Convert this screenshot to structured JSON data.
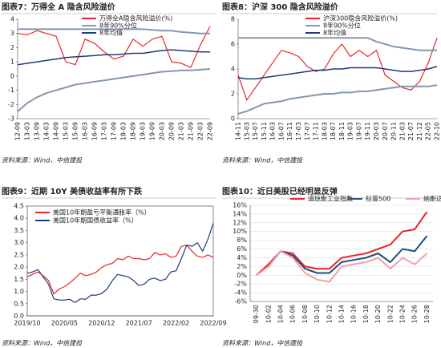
{
  "chart_data": [
    {
      "type": "line",
      "title": "图表7：万得全 A 隐含风险溢价",
      "source": "资料来源：Wind，中信建投",
      "legend": "upper center",
      "grid": false,
      "frame": false,
      "xtick_rotation": 90,
      "category_padding": false,
      "categories": [
        "12-09",
        "13-03",
        "13-09",
        "14-03",
        "14-09",
        "15-03",
        "15-09",
        "16-03",
        "16-09",
        "17-03",
        "17-09",
        "18-03",
        "18-09",
        "19-03",
        "19-09",
        "20-03",
        "20-09",
        "21-03",
        "21-09",
        "22-03",
        "22-09"
      ],
      "ylim": [
        -3,
        4
      ],
      "yticks": [
        -3,
        -2,
        -1,
        0,
        1,
        2,
        3,
        4
      ],
      "series": [
        {
          "name": "万得全A隐含风险溢价(%)",
          "color": "#e8262a",
          "width": 1.2,
          "values": [
            3.0,
            2.9,
            3.2,
            3.0,
            2.8,
            1.0,
            0.8,
            2.6,
            2.3,
            1.7,
            1.2,
            1.4,
            2.6,
            2.1,
            2.6,
            2.8,
            1.0,
            0.9,
            0.6,
            2.2,
            3.5
          ]
        },
        {
          "name": "8年90%分位",
          "color": "#8497b0",
          "width": 2,
          "values": [
            3.3,
            3.3,
            3.3,
            3.3,
            3.3,
            3.3,
            3.3,
            3.3,
            3.3,
            3.3,
            3.3,
            3.3,
            3.3,
            3.3,
            3.25,
            3.2,
            3.2,
            3.1,
            3.05,
            3.0,
            3.0
          ]
        },
        {
          "color": "#8497b0",
          "width": 2,
          "values": [
            -2.5,
            -1.9,
            -1.5,
            -1.2,
            -1.0,
            -0.8,
            -0.6,
            -0.5,
            -0.4,
            -0.3,
            -0.2,
            -0.1,
            0,
            0.1,
            0.2,
            0.3,
            0.35,
            0.4,
            0.4,
            0.45,
            0.5
          ]
        },
        {
          "name": "8年均值",
          "color": "#1f3a7a",
          "width": 1.5,
          "values": [
            0.8,
            0.9,
            1.0,
            1.1,
            1.2,
            1.3,
            1.35,
            1.4,
            1.45,
            1.5,
            1.5,
            1.55,
            1.6,
            1.6,
            1.7,
            1.8,
            1.85,
            1.8,
            1.75,
            1.7,
            1.7
          ]
        }
      ]
    },
    {
      "type": "line",
      "title": "图表8：沪深 300 隐含风险溢价",
      "source": "资料来源：Wind，中信建投",
      "legend": "upper center",
      "grid": false,
      "frame": false,
      "xtick_rotation": 90,
      "category_padding": false,
      "categories": [
        "14-11",
        "15-03",
        "15-07",
        "15-11",
        "16-03",
        "16-07",
        "16-11",
        "17-03",
        "17-07",
        "17-11",
        "18-03",
        "18-07",
        "18-11",
        "19-03",
        "19-07",
        "19-11",
        "20-03",
        "20-07",
        "20-11",
        "21-03",
        "21-07",
        "21-12",
        "22-05",
        "22-10"
      ],
      "ylim": [
        0,
        8
      ],
      "yticks": [
        0,
        2,
        4,
        6,
        8
      ],
      "series": [
        {
          "name": "沪深300隐含风险溢价(%)",
          "color": "#e8262a",
          "width": 1.2,
          "values": [
            3.5,
            1.5,
            2.5,
            3.5,
            4.5,
            5.5,
            5.3,
            5.0,
            4.2,
            3.8,
            4.0,
            5.2,
            6.0,
            5.0,
            5.5,
            5.0,
            5.5,
            3.5,
            3.0,
            2.5,
            2.3,
            3.0,
            4.5,
            6.5
          ]
        },
        {
          "name": "8年90%分位",
          "color": "#8497b0",
          "width": 2,
          "values": [
            6.5,
            6.5,
            6.5,
            6.5,
            6.5,
            6.5,
            6.5,
            6.5,
            6.5,
            6.5,
            6.5,
            6.5,
            6.5,
            6.5,
            6.5,
            6.5,
            6.2,
            6.0,
            5.8,
            5.7,
            5.6,
            5.5,
            5.5,
            5.5
          ]
        },
        {
          "color": "#8497b0",
          "width": 2,
          "values": [
            0.4,
            0.6,
            0.9,
            1.2,
            1.3,
            1.4,
            1.6,
            1.7,
            1.8,
            1.9,
            2.0,
            2.0,
            2.1,
            2.1,
            2.2,
            2.2,
            2.3,
            2.4,
            2.5,
            2.6,
            2.6,
            2.6,
            2.6,
            2.7
          ]
        },
        {
          "name": "8年均值",
          "color": "#1f3a7a",
          "width": 1.5,
          "values": [
            3.3,
            3.2,
            3.2,
            3.3,
            3.4,
            3.5,
            3.6,
            3.7,
            3.8,
            3.9,
            3.9,
            4.0,
            4.0,
            4.1,
            4.1,
            4.1,
            4.1,
            4.0,
            3.9,
            3.8,
            3.8,
            3.9,
            4.0,
            4.2
          ]
        }
      ]
    },
    {
      "type": "line",
      "title": "图表9：近期 10Y 美债收益率有所下跌",
      "source": "资料来源：Wind，中信建投",
      "legend": "upper left",
      "grid": false,
      "frame": true,
      "xtick_rotation": 0,
      "category_padding": false,
      "categories": [
        "2019/10",
        null,
        null,
        null,
        null,
        null,
        null,
        "2020/05",
        null,
        null,
        null,
        null,
        null,
        null,
        "2020/12",
        null,
        null,
        null,
        null,
        null,
        null,
        "2021/07",
        null,
        null,
        null,
        null,
        null,
        null,
        "2022/02",
        null,
        null,
        null,
        null,
        null,
        null,
        "2022/09"
      ],
      "ylim": [
        0,
        4.5
      ],
      "yticks": [
        {
          "value": 0,
          "label": "0.0"
        },
        {
          "value": 0.5,
          "label": "0.5"
        },
        {
          "value": 1,
          "label": "1.0"
        },
        {
          "value": 1.5,
          "label": "1.5"
        },
        {
          "value": 2,
          "label": "2.0"
        },
        {
          "value": 2.5,
          "label": "2.5"
        },
        {
          "value": 3,
          "label": "3.0"
        },
        {
          "value": 3.5,
          "label": "3.5"
        },
        {
          "value": 4,
          "label": "4.0"
        },
        {
          "value": 4.5,
          "label": "4.5"
        }
      ],
      "series": [
        {
          "name": "美国10年期盈亏平衡通胀率（%）",
          "color": "#e8262a",
          "width": 1.2,
          "values": [
            1.6,
            1.7,
            1.8,
            1.65,
            1.45,
            0.9,
            1.1,
            1.2,
            1.35,
            1.55,
            1.75,
            1.65,
            1.7,
            1.8,
            1.98,
            2.1,
            2.15,
            2.35,
            2.3,
            2.45,
            2.35,
            2.35,
            2.3,
            2.35,
            2.6,
            2.5,
            2.55,
            2.4,
            2.45,
            2.85,
            2.9,
            2.65,
            2.45,
            2.4,
            2.5,
            2.4
          ]
        },
        {
          "name": "美国10年期国债收益率（%）",
          "color": "#1f3a7a",
          "width": 1.2,
          "values": [
            1.75,
            1.8,
            1.9,
            1.6,
            1.3,
            0.7,
            0.65,
            0.65,
            0.68,
            0.55,
            0.7,
            0.68,
            0.85,
            0.85,
            0.92,
            1.1,
            1.45,
            1.7,
            1.65,
            1.6,
            1.45,
            1.25,
            1.3,
            1.5,
            1.55,
            1.45,
            1.5,
            1.8,
            1.85,
            2.35,
            2.9,
            2.85,
            3.0,
            2.65,
            3.15,
            3.8
          ]
        }
      ]
    },
    {
      "type": "line",
      "title": "图表10：近日美股已经明显反弹",
      "source": "资料来源：Wind，中信建投",
      "legend": "top",
      "grid": true,
      "frame": false,
      "xtick_rotation": 90,
      "category_padding": true,
      "categories": [
        "09-30",
        "10-02",
        "10-04",
        "10-06",
        "10-08",
        "10-10",
        "10-12",
        "10-14",
        "10-16",
        "10-18",
        "10-20",
        "10-22",
        "10-24",
        "10-26",
        "10-28"
      ],
      "ylim": [
        -6,
        16
      ],
      "yticks": [
        {
          "value": -6,
          "label": "-6%"
        },
        {
          "value": -4,
          "label": "-4%"
        },
        {
          "value": -2,
          "label": "-2%"
        },
        {
          "value": 0,
          "label": "0%"
        },
        {
          "value": 2,
          "label": "2%"
        },
        {
          "value": 4,
          "label": "4%"
        },
        {
          "value": 6,
          "label": "6%"
        },
        {
          "value": 8,
          "label": "8%"
        },
        {
          "value": 10,
          "label": "10%"
        },
        {
          "value": 12,
          "label": "12%"
        },
        {
          "value": 14,
          "label": "14%"
        },
        {
          "value": 16,
          "label": "16%"
        }
      ],
      "series": [
        {
          "name": "道琼斯工业指数",
          "color": "#e8262a",
          "width": 2,
          "values": [
            0,
            2.5,
            5.5,
            5,
            2,
            1.5,
            1.5,
            4,
            4.5,
            5,
            6,
            7,
            10,
            10.5,
            14.5
          ]
        },
        {
          "name": "标普500",
          "color": "#1f4e79",
          "width": 2,
          "values": [
            0,
            2,
            5.5,
            4.5,
            1.5,
            0.5,
            0.5,
            3,
            3.5,
            4,
            5,
            3,
            6,
            5.5,
            9
          ]
        },
        {
          "name": "纳斯达克指数",
          "color": "#f4a0a8",
          "width": 2,
          "values": [
            0,
            2,
            5.5,
            4,
            0.5,
            -1,
            -1.5,
            2,
            2.5,
            3,
            4,
            1.5,
            4,
            2.5,
            5
          ]
        }
      ]
    }
  ]
}
